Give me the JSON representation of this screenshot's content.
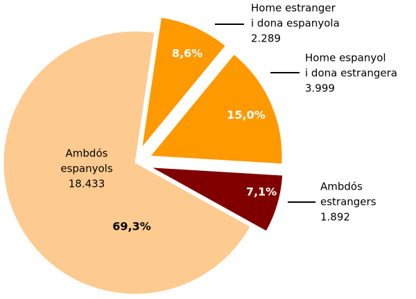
{
  "chart_data": {
    "type": "pie",
    "categories": [
      [
        "Home estranger",
        "i dona espanyola"
      ],
      [
        "Home espanyol",
        "i dona estrangera"
      ],
      [
        "Ambdós",
        "estrangers"
      ],
      [
        "Ambdós",
        "espanyols"
      ]
    ],
    "values": [
      2289,
      3999,
      1892,
      18433
    ],
    "value_labels": [
      "2.289",
      "3.999",
      "1.892",
      "18.433"
    ],
    "percentages": [
      8.6,
      15.0,
      7.1,
      69.3
    ],
    "percentage_labels": [
      "8,6%",
      "15,0%",
      "7,1%",
      "69,3%"
    ],
    "colors": [
      "#ff9900",
      "#ff9900",
      "#800000",
      "#fdca90"
    ],
    "exploded": [
      true,
      true,
      true,
      false
    ]
  }
}
